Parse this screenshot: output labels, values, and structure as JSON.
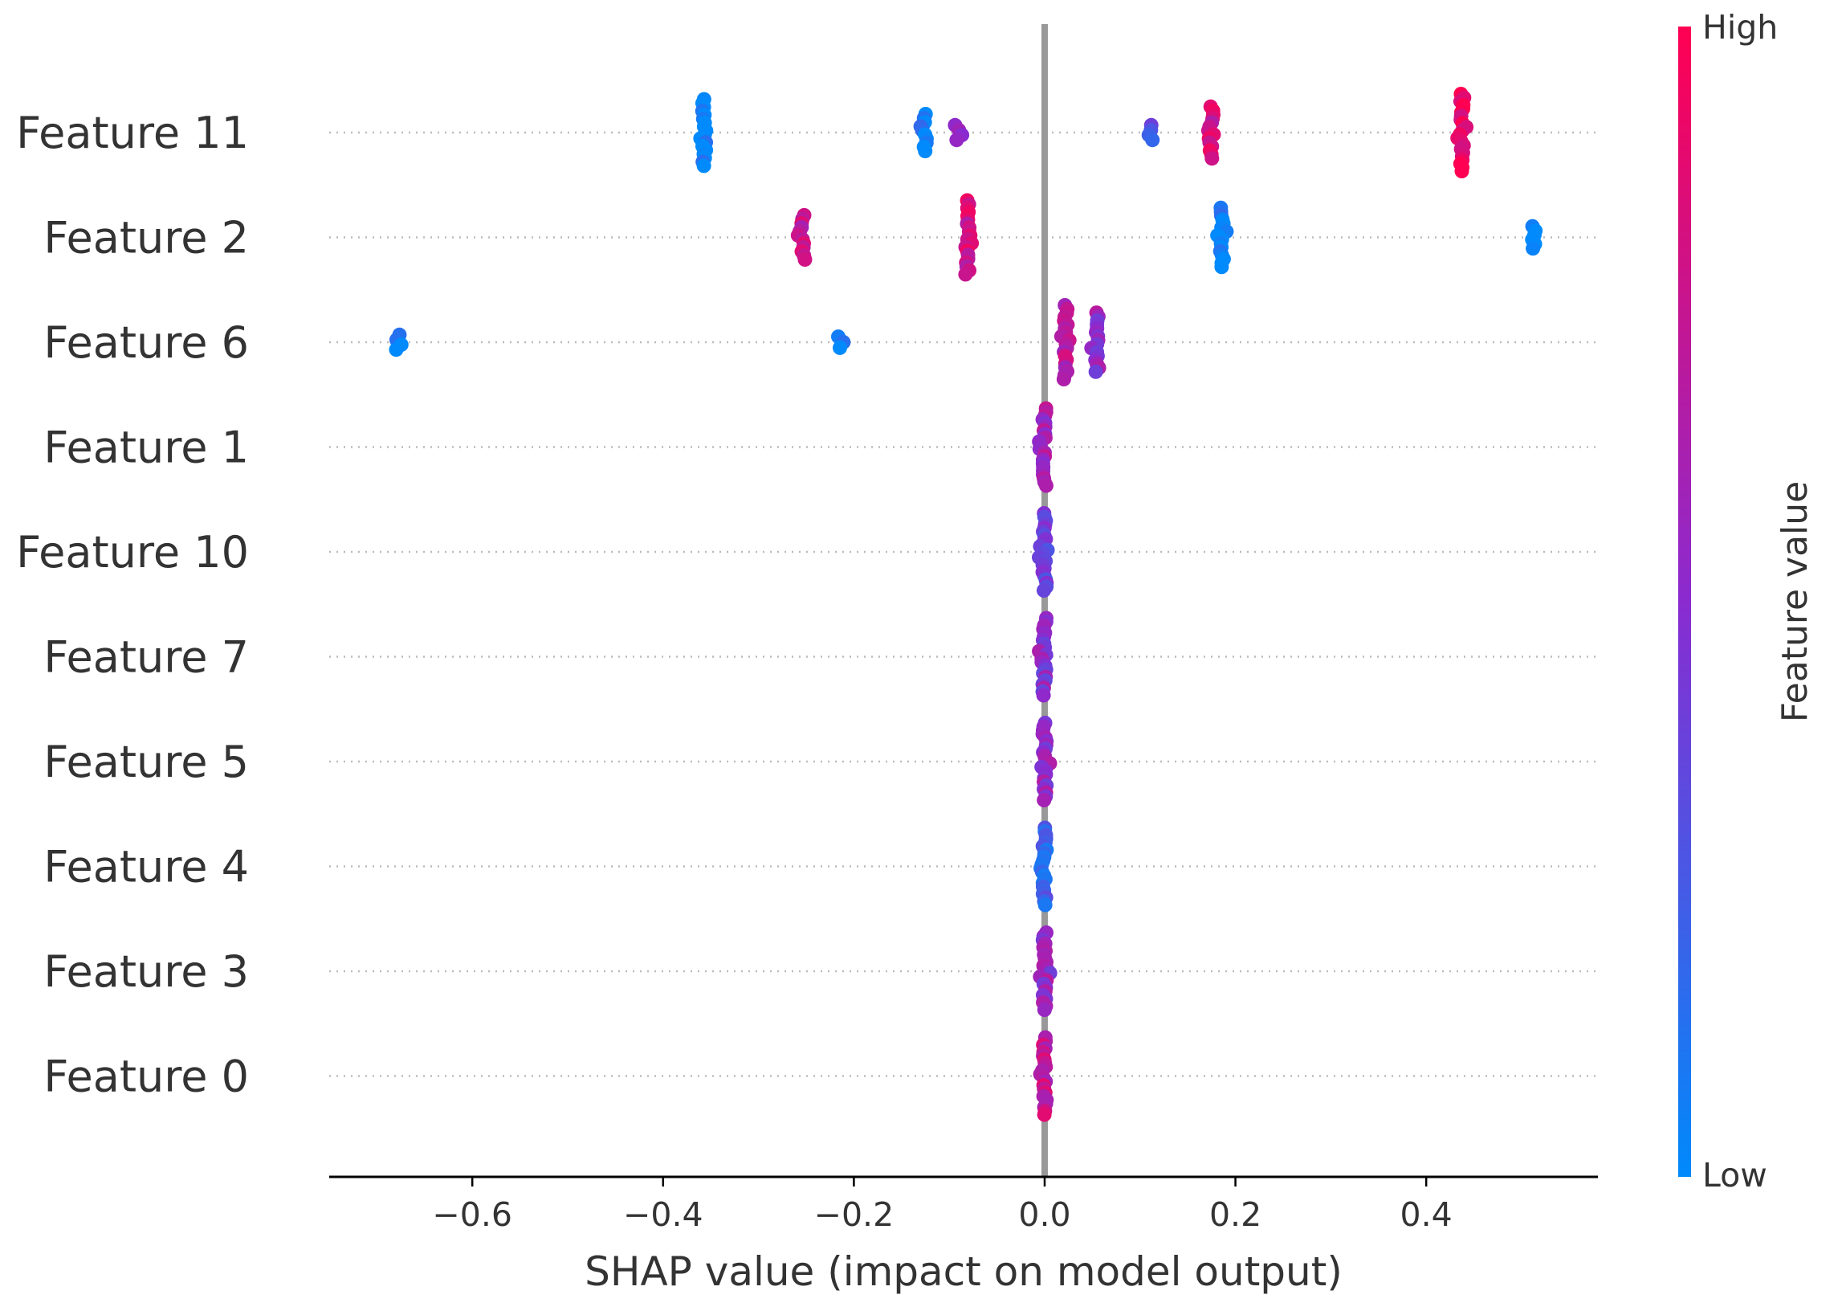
{
  "chart_data": {
    "type": "scatter",
    "subtype": "shap-beeswarm",
    "xlabel": "SHAP value (impact on model output)",
    "xlim": [
      -0.75,
      0.58
    ],
    "xticks": [
      -0.6,
      -0.4,
      -0.2,
      0.0,
      0.2,
      0.4
    ],
    "xtick_labels": [
      "−0.6",
      "−0.4",
      "−0.2",
      "0.0",
      "0.2",
      "0.4"
    ],
    "zero_line": 0.0,
    "colorbar": {
      "title": "Feature value",
      "high_label": "High",
      "low_label": "Low",
      "low_color": "#008afb",
      "high_color": "#ff0052",
      "mid_color": "#8a2bd0"
    },
    "features": [
      {
        "name": "Feature 11",
        "clusters": [
          {
            "x": -0.357,
            "value": 0.0,
            "count": 18
          },
          {
            "x": -0.125,
            "value": 0.05,
            "count": 10
          },
          {
            "x": -0.092,
            "value": 0.55,
            "count": 4
          },
          {
            "x": 0.112,
            "value": 0.3,
            "count": 4
          },
          {
            "x": 0.175,
            "value": 0.8,
            "count": 14
          },
          {
            "x": 0.438,
            "value": 0.95,
            "count": 22
          }
        ]
      },
      {
        "name": "Feature 2",
        "clusters": [
          {
            "x": -0.253,
            "value": 0.75,
            "count": 12
          },
          {
            "x": -0.081,
            "value": 0.8,
            "count": 20
          },
          {
            "x": 0.186,
            "value": 0.05,
            "count": 16
          },
          {
            "x": 0.513,
            "value": 0.0,
            "count": 6
          }
        ]
      },
      {
        "name": "Feature 6",
        "clusters": [
          {
            "x": -0.678,
            "value": 0.0,
            "count": 4
          },
          {
            "x": -0.212,
            "value": 0.0,
            "count": 3
          },
          {
            "x": 0.022,
            "value": 0.7,
            "count": 20
          },
          {
            "x": 0.055,
            "value": 0.55,
            "count": 16
          }
        ]
      },
      {
        "name": "Feature 1",
        "clusters": [
          {
            "x": 0.0,
            "value": 0.6,
            "count": 22
          }
        ]
      },
      {
        "name": "Feature 10",
        "clusters": [
          {
            "x": 0.0,
            "value": 0.4,
            "count": 22
          }
        ]
      },
      {
        "name": "Feature 7",
        "clusters": [
          {
            "x": 0.0,
            "value": 0.5,
            "count": 22
          }
        ]
      },
      {
        "name": "Feature 5",
        "clusters": [
          {
            "x": 0.0,
            "value": 0.55,
            "count": 22
          }
        ]
      },
      {
        "name": "Feature 4",
        "clusters": [
          {
            "x": 0.0,
            "value": 0.2,
            "count": 22
          }
        ]
      },
      {
        "name": "Feature 3",
        "clusters": [
          {
            "x": 0.0,
            "value": 0.55,
            "count": 22
          }
        ]
      },
      {
        "name": "Feature 0",
        "clusters": [
          {
            "x": 0.0,
            "value": 0.75,
            "count": 22
          }
        ]
      }
    ]
  }
}
